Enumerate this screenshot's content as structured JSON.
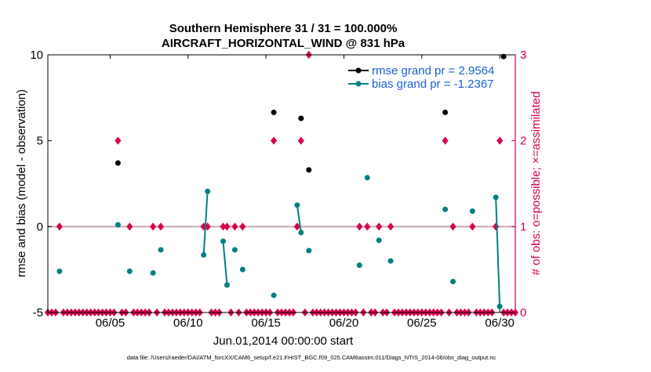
{
  "chart_data": {
    "type": "scatter",
    "title": "Southern Hemisphere 31 / 31 = 100.000%",
    "subtitle": "AIRCRAFT_HORIZONTAL_WIND @ 831 hPa",
    "xlabel": "Jun.01,2014 00:00:00 start",
    "ylabel_left": "rmse and bias (model - observation)",
    "ylabel_right": "# of obs: o=possible; ×=assimilated",
    "footnote": "data file: /Users/raeder/DAI/ATM_forcXX/CAM6_setup/f.e21.FHIST_BGC.f09_025.CAM6assim.011/Diags_NTrS_2014-06/obs_diag_output.nc",
    "xlim": [
      1,
      31
    ],
    "ylim_left": [
      -5,
      10
    ],
    "ylim_right": [
      0,
      3
    ],
    "x_ticks": [
      5,
      10,
      15,
      20,
      25,
      30
    ],
    "x_tick_labels": [
      "06/05",
      "06/10",
      "06/15",
      "06/20",
      "06/25",
      "06/30"
    ],
    "y_ticks_left": [
      -5,
      0,
      5,
      10
    ],
    "y_tick_labels_left": [
      "-5",
      "0",
      "5",
      "10"
    ],
    "y_ticks_right": [
      0,
      1,
      2,
      3
    ],
    "y_tick_labels_right": [
      "0",
      "1",
      "2",
      "3"
    ],
    "zero_line": 0,
    "legend_location": "top-right",
    "colors": {
      "rmse": "#000000",
      "bias": "#008080",
      "obs": "#d6004f",
      "zero": "#c8a8b0"
    },
    "series": [
      {
        "name": "rmse",
        "legend": "rmse grand pr = 2.9564",
        "axis": "left",
        "points": [
          [
            5.5,
            3.7
          ],
          [
            15.5,
            6.65
          ],
          [
            17.25,
            6.3
          ],
          [
            17.75,
            3.3
          ],
          [
            26.5,
            6.65
          ],
          [
            30.25,
            9.9
          ]
        ],
        "segments": []
      },
      {
        "name": "bias",
        "legend": "bias grand pr = -1.2367",
        "axis": "left",
        "points": [
          [
            1.75,
            -2.6
          ],
          [
            5.5,
            0.1
          ],
          [
            6.25,
            -2.6
          ],
          [
            7.75,
            -2.7
          ],
          [
            8.25,
            -1.35
          ],
          [
            11.0,
            -1.65
          ],
          [
            11.25,
            2.05
          ],
          [
            12.25,
            -0.85
          ],
          [
            12.5,
            -3.4
          ],
          [
            13.0,
            -1.35
          ],
          [
            13.5,
            -2.5
          ],
          [
            15.5,
            -4.0
          ],
          [
            17.0,
            1.25
          ],
          [
            17.25,
            -0.35
          ],
          [
            17.75,
            -1.4
          ],
          [
            21.0,
            -2.25
          ],
          [
            21.5,
            2.85
          ],
          [
            22.25,
            -0.8
          ],
          [
            23.0,
            -2.0
          ],
          [
            26.5,
            1.0
          ],
          [
            27.0,
            -3.2
          ],
          [
            28.25,
            0.9
          ],
          [
            29.75,
            1.7
          ],
          [
            30.0,
            -4.65
          ]
        ],
        "segments": [
          [
            [
              11.0,
              -1.65
            ],
            [
              11.25,
              2.05
            ]
          ],
          [
            [
              12.25,
              -0.85
            ],
            [
              12.5,
              -3.4
            ]
          ],
          [
            [
              17.0,
              1.25
            ],
            [
              17.25,
              -0.35
            ]
          ],
          [
            [
              29.75,
              1.7
            ],
            [
              30.0,
              -4.65
            ]
          ]
        ]
      },
      {
        "name": "obs_count",
        "axis": "right",
        "points": [
          [
            1.75,
            1
          ],
          [
            5.5,
            2
          ],
          [
            6.25,
            1
          ],
          [
            7.75,
            1
          ],
          [
            8.25,
            1
          ],
          [
            11.0,
            1
          ],
          [
            11.25,
            1
          ],
          [
            12.25,
            1
          ],
          [
            12.5,
            1
          ],
          [
            13.0,
            1
          ],
          [
            13.5,
            1
          ],
          [
            15.5,
            2
          ],
          [
            17.0,
            1
          ],
          [
            17.25,
            2
          ],
          [
            17.75,
            3
          ],
          [
            21.0,
            1
          ],
          [
            21.5,
            1
          ],
          [
            22.25,
            1
          ],
          [
            23.0,
            1
          ],
          [
            26.5,
            2
          ],
          [
            27.0,
            1
          ],
          [
            28.25,
            1
          ],
          [
            29.75,
            1
          ],
          [
            30.0,
            2
          ]
        ],
        "zero_markers_step": 0.25
      }
    ]
  }
}
